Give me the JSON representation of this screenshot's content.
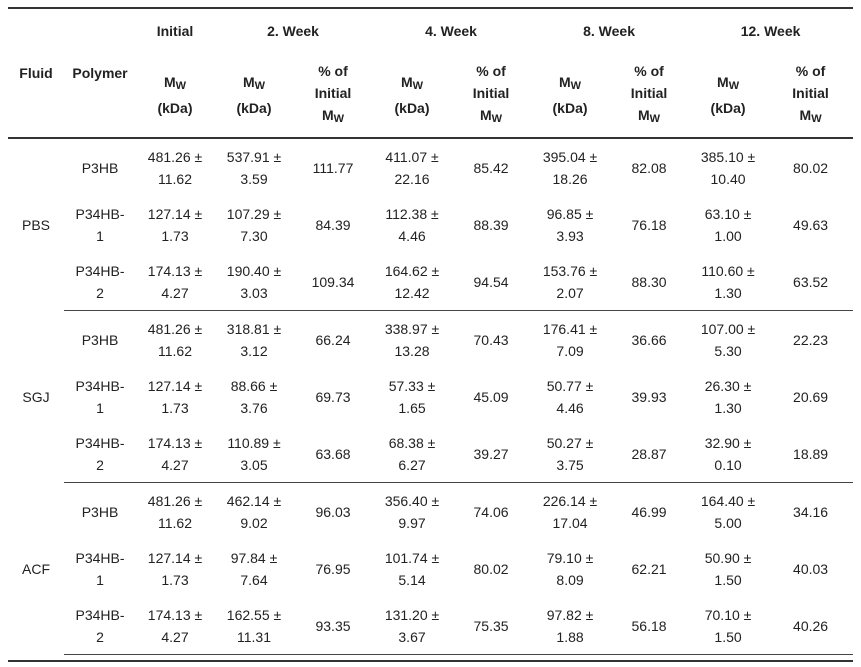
{
  "headers": {
    "fluid": "Fluid",
    "polymer": "Polymer",
    "periods": [
      "Initial",
      "2. Week",
      "4. Week",
      "8. Week",
      "12. Week"
    ],
    "mw_letter": "M",
    "mw_sub": "W",
    "unit": "(kDa)",
    "pct_line1": "% of",
    "pct_line2": "Initial"
  },
  "groups": [
    {
      "fluid": "PBS",
      "rows": [
        {
          "polymer": [
            "P3HB",
            ""
          ],
          "initial": [
            "481.26 ±",
            "11.62"
          ],
          "w2": [
            "537.91 ±",
            "3.59"
          ],
          "w2p": "111.77",
          "w4": [
            "411.07 ±",
            "22.16"
          ],
          "w4p": "85.42",
          "w8": [
            "395.04 ±",
            "18.26"
          ],
          "w8p": "82.08",
          "w12": [
            "385.10 ±",
            "10.40"
          ],
          "w12p": "80.02"
        },
        {
          "polymer": [
            "P34HB-",
            "1"
          ],
          "initial": [
            "127.14 ±",
            "1.73"
          ],
          "w2": [
            "107.29 ±",
            "7.30"
          ],
          "w2p": "84.39",
          "w4": [
            "112.38 ±",
            "4.46"
          ],
          "w4p": "88.39",
          "w8": [
            "96.85 ±",
            "3.93"
          ],
          "w8p": "76.18",
          "w12": [
            "63.10 ±",
            "1.00"
          ],
          "w12p": "49.63"
        },
        {
          "polymer": [
            "P34HB-",
            "2"
          ],
          "initial": [
            "174.13 ±",
            "4.27"
          ],
          "w2": [
            "190.40 ±",
            "3.03"
          ],
          "w2p": "109.34",
          "w4": [
            "164.62 ±",
            "12.42"
          ],
          "w4p": "94.54",
          "w8": [
            "153.76 ±",
            "2.07"
          ],
          "w8p": "88.30",
          "w12": [
            "110.60 ±",
            "1.30"
          ],
          "w12p": "63.52"
        }
      ]
    },
    {
      "fluid": "SGJ",
      "rows": [
        {
          "polymer": [
            "P3HB",
            ""
          ],
          "initial": [
            "481.26 ±",
            "11.62"
          ],
          "w2": [
            "318.81 ±",
            "3.12"
          ],
          "w2p": "66.24",
          "w4": [
            "338.97 ±",
            "13.28"
          ],
          "w4p": "70.43",
          "w8": [
            "176.41 ±",
            "7.09"
          ],
          "w8p": "36.66",
          "w12": [
            "107.00 ±",
            "5.30"
          ],
          "w12p": "22.23"
        },
        {
          "polymer": [
            "P34HB-",
            "1"
          ],
          "initial": [
            "127.14 ±",
            "1.73"
          ],
          "w2": [
            "88.66 ±",
            "3.76"
          ],
          "w2p": "69.73",
          "w4": [
            "57.33 ±",
            "1.65"
          ],
          "w4p": "45.09",
          "w8": [
            "50.77 ±",
            "4.46"
          ],
          "w8p": "39.93",
          "w12": [
            "26.30 ±",
            "1.30"
          ],
          "w12p": "20.69"
        },
        {
          "polymer": [
            "P34HB-",
            "2"
          ],
          "initial": [
            "174.13 ±",
            "4.27"
          ],
          "w2": [
            "110.89 ±",
            "3.05"
          ],
          "w2p": "63.68",
          "w4": [
            "68.38 ±",
            "6.27"
          ],
          "w4p": "39.27",
          "w8": [
            "50.27 ±",
            "3.75"
          ],
          "w8p": "28.87",
          "w12": [
            "32.90 ±",
            "0.10"
          ],
          "w12p": "18.89"
        }
      ]
    },
    {
      "fluid": "ACF",
      "rows": [
        {
          "polymer": [
            "P3HB",
            ""
          ],
          "initial": [
            "481.26 ±",
            "11.62"
          ],
          "w2": [
            "462.14 ±",
            "9.02"
          ],
          "w2p": "96.03",
          "w4": [
            "356.40 ±",
            "9.97"
          ],
          "w4p": "74.06",
          "w8": [
            "226.14 ±",
            "17.04"
          ],
          "w8p": "46.99",
          "w12": [
            "164.40 ±",
            "5.00"
          ],
          "w12p": "34.16"
        },
        {
          "polymer": [
            "P34HB-",
            "1"
          ],
          "initial": [
            "127.14 ±",
            "1.73"
          ],
          "w2": [
            "97.84 ±",
            "7.64"
          ],
          "w2p": "76.95",
          "w4": [
            "101.74 ±",
            "5.14"
          ],
          "w4p": "80.02",
          "w8": [
            "79.10 ±",
            "8.09"
          ],
          "w8p": "62.21",
          "w12": [
            "50.90 ±",
            "1.50"
          ],
          "w12p": "40.03"
        },
        {
          "polymer": [
            "P34HB-",
            "2"
          ],
          "initial": [
            "174.13 ±",
            "4.27"
          ],
          "w2": [
            "162.55 ±",
            "11.31"
          ],
          "w2p": "93.35",
          "w4": [
            "131.20 ±",
            "3.67"
          ],
          "w4p": "75.35",
          "w8": [
            "97.82 ±",
            "1.88"
          ],
          "w8p": "56.18",
          "w12": [
            "70.10 ±",
            "1.50"
          ],
          "w12p": "40.26"
        }
      ]
    }
  ]
}
